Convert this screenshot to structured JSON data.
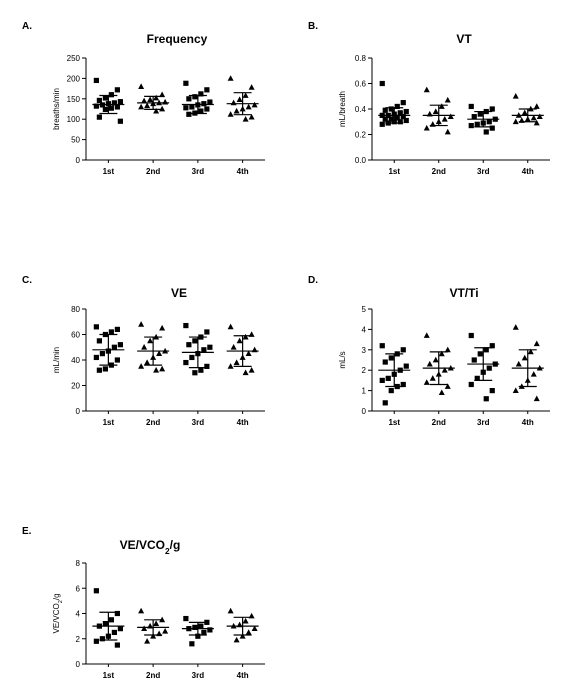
{
  "chart_data": [
    {
      "panel": "A.",
      "title": "Frequency",
      "type": "scatter",
      "ylabel": "breaths/min",
      "ylim": [
        0,
        250
      ],
      "yticks": [
        "0",
        "50",
        "100",
        "150",
        "200",
        "250"
      ],
      "categories": [
        "1st",
        "2nd",
        "3rd",
        "4th"
      ],
      "markers": [
        "square",
        "triangle",
        "square",
        "triangle"
      ],
      "summary": [
        {
          "mean": 136,
          "sd": 22
        },
        {
          "mean": 140,
          "sd": 16
        },
        {
          "mean": 136,
          "sd": 22
        },
        {
          "mean": 138,
          "sd": 27
        }
      ],
      "points": [
        [
          195,
          172,
          160,
          152,
          146,
          143,
          140,
          138,
          135,
          132,
          130,
          127,
          124,
          105,
          95
        ],
        [
          180,
          160,
          152,
          148,
          145,
          142,
          140,
          138,
          133,
          130,
          125,
          120
        ],
        [
          188,
          172,
          162,
          155,
          150,
          142,
          138,
          135,
          130,
          128,
          125,
          120,
          115,
          112
        ],
        [
          200,
          178,
          158,
          148,
          140,
          135,
          130,
          125,
          120,
          112,
          105,
          100
        ]
      ]
    },
    {
      "panel": "B.",
      "title": "VT",
      "type": "scatter",
      "ylabel": "mL/breath",
      "ylim": [
        0,
        0.8
      ],
      "yticks": [
        "0.0",
        "0.2",
        "0.4",
        "0.6",
        "0.8"
      ],
      "categories": [
        "1st",
        "2nd",
        "3rd",
        "4th"
      ],
      "markers": [
        "square",
        "triangle",
        "square",
        "triangle"
      ],
      "summary": [
        {
          "mean": 0.35,
          "sd": 0.06
        },
        {
          "mean": 0.35,
          "sd": 0.08
        },
        {
          "mean": 0.32,
          "sd": 0.06
        },
        {
          "mean": 0.35,
          "sd": 0.05
        }
      ],
      "points": [
        [
          0.6,
          0.45,
          0.42,
          0.4,
          0.39,
          0.38,
          0.37,
          0.36,
          0.35,
          0.35,
          0.34,
          0.33,
          0.32,
          0.32,
          0.31,
          0.3,
          0.3,
          0.29,
          0.28
        ],
        [
          0.55,
          0.47,
          0.42,
          0.38,
          0.36,
          0.34,
          0.32,
          0.3,
          0.28,
          0.25,
          0.22
        ],
        [
          0.42,
          0.4,
          0.38,
          0.36,
          0.34,
          0.32,
          0.3,
          0.29,
          0.28,
          0.27,
          0.25,
          0.22
        ],
        [
          0.5,
          0.42,
          0.4,
          0.37,
          0.35,
          0.34,
          0.33,
          0.32,
          0.31,
          0.3,
          0.29
        ]
      ]
    },
    {
      "panel": "C.",
      "title": "VE",
      "type": "scatter",
      "ylabel": "mL/min",
      "ylim": [
        0,
        80
      ],
      "yticks": [
        "0",
        "20",
        "40",
        "60",
        "80"
      ],
      "categories": [
        "1st",
        "2nd",
        "3rd",
        "4th"
      ],
      "markers": [
        "square",
        "triangle",
        "square",
        "triangle"
      ],
      "summary": [
        {
          "mean": 48,
          "sd": 12
        },
        {
          "mean": 47,
          "sd": 11
        },
        {
          "mean": 46,
          "sd": 12
        },
        {
          "mean": 47,
          "sd": 12
        }
      ],
      "points": [
        [
          66,
          64,
          62,
          60,
          55,
          52,
          50,
          47,
          45,
          42,
          40,
          36,
          33,
          32
        ],
        [
          68,
          65,
          58,
          55,
          50,
          47,
          45,
          42,
          38,
          35,
          33,
          32
        ],
        [
          67,
          62,
          58,
          55,
          52,
          50,
          48,
          45,
          42,
          38,
          35,
          32,
          30
        ],
        [
          66,
          60,
          58,
          55,
          50,
          48,
          45,
          42,
          38,
          35,
          32,
          30
        ]
      ]
    },
    {
      "panel": "D.",
      "title": "VT/Ti",
      "type": "scatter",
      "ylabel": "mL/s",
      "ylim": [
        0,
        5
      ],
      "yticks": [
        "0",
        "1",
        "2",
        "3",
        "4",
        "5"
      ],
      "categories": [
        "1st",
        "2nd",
        "3rd",
        "4th"
      ],
      "markers": [
        "square",
        "triangle",
        "square",
        "triangle"
      ],
      "summary": [
        {
          "mean": 2.0,
          "sd": 0.8
        },
        {
          "mean": 2.1,
          "sd": 0.8
        },
        {
          "mean": 2.3,
          "sd": 0.8
        },
        {
          "mean": 2.1,
          "sd": 0.9
        }
      ],
      "points": [
        [
          3.2,
          3.0,
          2.8,
          2.6,
          2.4,
          2.2,
          2.0,
          1.8,
          1.6,
          1.5,
          1.3,
          1.2,
          1.0,
          0.4
        ],
        [
          3.7,
          3.0,
          2.8,
          2.5,
          2.3,
          2.1,
          2.0,
          1.8,
          1.6,
          1.4,
          1.2,
          0.9
        ],
        [
          3.7,
          3.2,
          3.0,
          2.8,
          2.5,
          2.3,
          2.1,
          1.9,
          1.6,
          1.3,
          1.0,
          0.6
        ],
        [
          4.1,
          3.3,
          2.9,
          2.6,
          2.3,
          2.1,
          1.8,
          1.5,
          1.2,
          1.0,
          0.6
        ]
      ]
    },
    {
      "panel": "E.",
      "title": "VE/VCO",
      "title_subscript": "2",
      "title_suffix": "/g",
      "type": "scatter",
      "ylabel": "VE/VCO",
      "ylabel_subscript": "2",
      "ylabel_suffix": "/g",
      "ylim": [
        0,
        8
      ],
      "yticks": [
        "0",
        "2",
        "4",
        "6",
        "8"
      ],
      "categories": [
        "1st",
        "2nd",
        "3rd",
        "4th"
      ],
      "markers": [
        "square",
        "triangle",
        "square",
        "triangle"
      ],
      "summary": [
        {
          "mean": 3.0,
          "sd": 1.1
        },
        {
          "mean": 2.9,
          "sd": 0.6
        },
        {
          "mean": 2.8,
          "sd": 0.5
        },
        {
          "mean": 3.0,
          "sd": 0.7
        }
      ],
      "points": [
        [
          5.8,
          4.0,
          3.5,
          3.2,
          3.0,
          2.8,
          2.5,
          2.2,
          2.0,
          1.8,
          1.5
        ],
        [
          4.2,
          3.5,
          3.2,
          3.0,
          2.8,
          2.6,
          2.4,
          2.2,
          1.8
        ],
        [
          3.6,
          3.3,
          3.0,
          2.9,
          2.8,
          2.7,
          2.5,
          2.2,
          1.6
        ],
        [
          4.2,
          3.8,
          3.4,
          3.1,
          3.0,
          2.8,
          2.5,
          2.2,
          1.9
        ]
      ]
    }
  ]
}
